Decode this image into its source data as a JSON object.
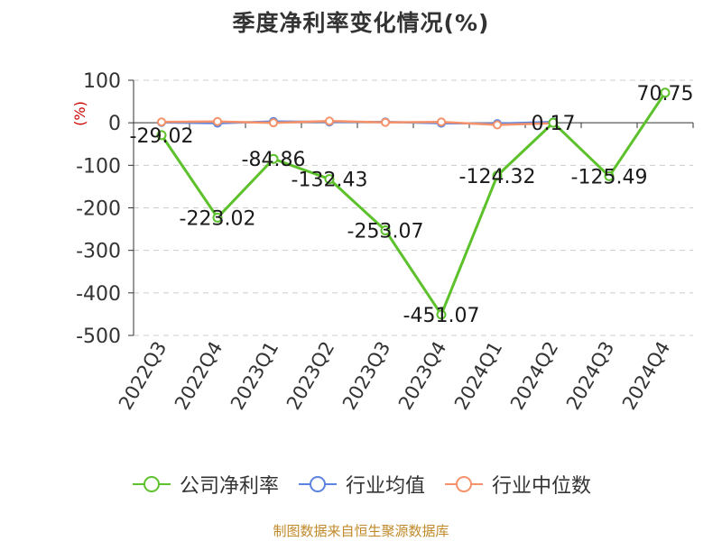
{
  "chart_data": {
    "type": "line",
    "title": "季度净利率变化情况(%)",
    "ylabel": "(%)",
    "xlabel": "",
    "categories": [
      "2022Q3",
      "2022Q4",
      "2023Q1",
      "2023Q2",
      "2023Q3",
      "2023Q4",
      "2024Q1",
      "2024Q2",
      "2024Q3",
      "2024Q4"
    ],
    "ylim": [
      -500,
      100
    ],
    "yticks": [
      100,
      0,
      -100,
      -200,
      -300,
      -400,
      -500
    ],
    "grid": true,
    "legend_position": "bottom",
    "series": [
      {
        "name": "公司净利率",
        "color": "#5cc12b",
        "values": [
          -29.02,
          -223.02,
          -84.86,
          -132.43,
          -253.07,
          -451.07,
          -124.32,
          0.17,
          -125.49,
          70.75
        ],
        "data_labels": [
          "-29.02",
          "-223.02",
          "-84.86",
          "-132.43",
          "-253.07",
          "-451.07",
          "-124.32",
          "0.17",
          "-125.49",
          "70.75"
        ]
      },
      {
        "name": "行业均值",
        "color": "#5b84e0",
        "values": [
          1,
          -1,
          3,
          2,
          2,
          -1,
          -2,
          2,
          null,
          null
        ]
      },
      {
        "name": "行业中位数",
        "color": "#f5926a",
        "values": [
          2,
          3,
          0,
          4,
          1,
          2,
          -5,
          -1,
          null,
          null
        ]
      }
    ]
  },
  "source": "制图数据来自恒生聚源数据库"
}
